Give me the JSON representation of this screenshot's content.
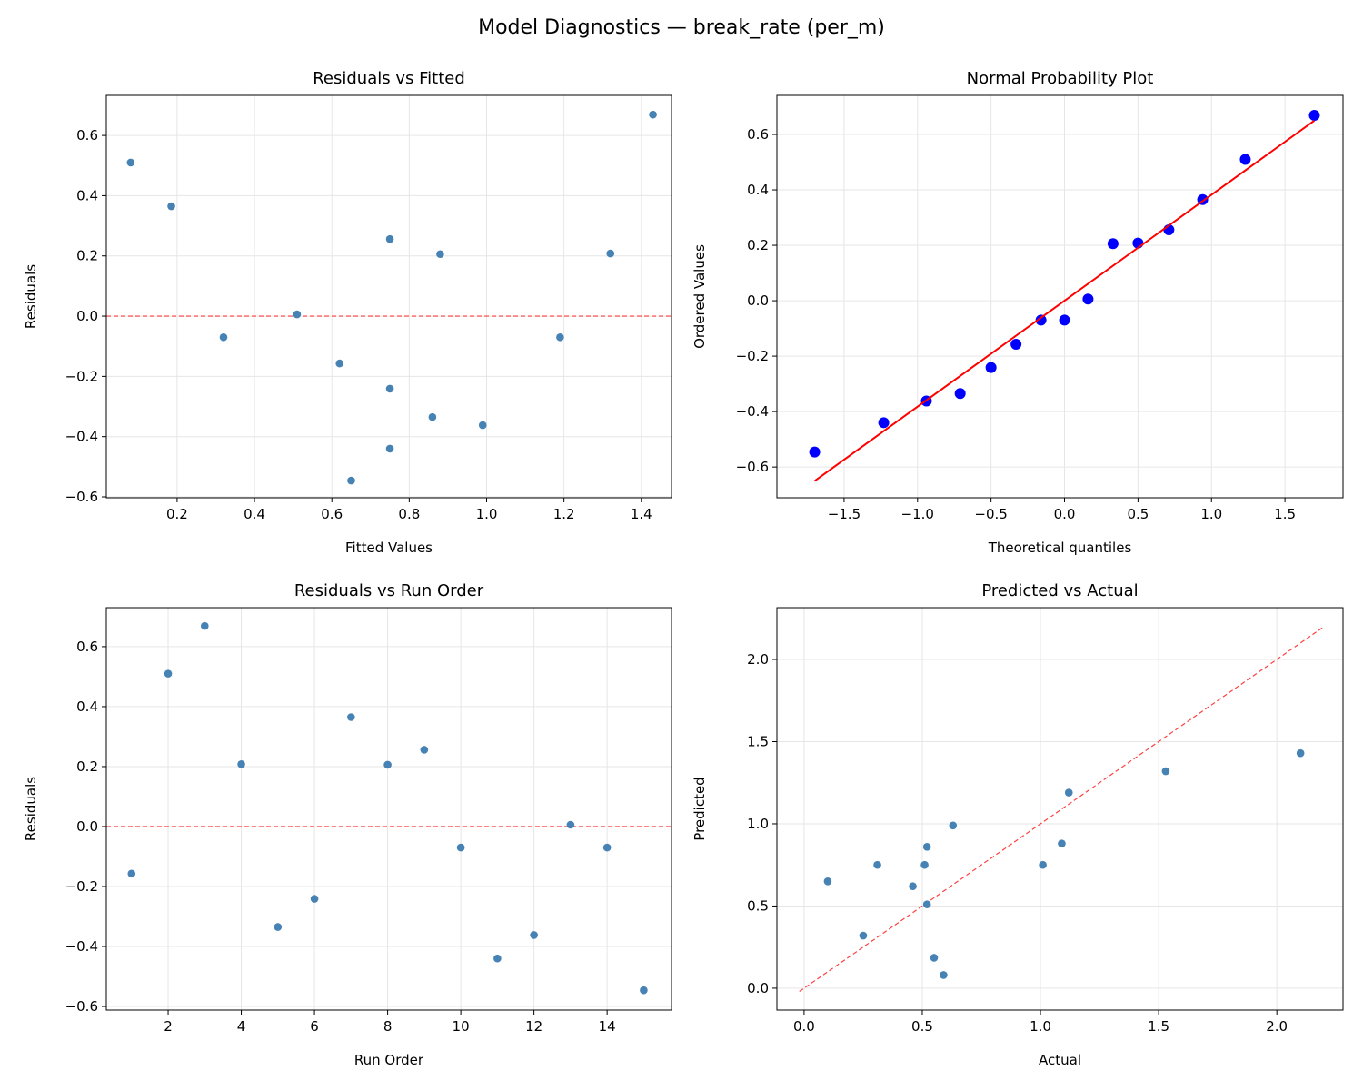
{
  "figure": {
    "title": "Model Diagnostics — break_rate (per_m)"
  },
  "colors": {
    "points": "#4682b4",
    "qq_points": "#0000ff",
    "qq_line": "#ff0000",
    "ref_line": "#ff0000",
    "grid": "#e6e6e6"
  },
  "chart_data": [
    {
      "type": "scatter",
      "title": "Residuals vs Fitted",
      "xlabel": "Fitted Values",
      "ylabel": "Residuals",
      "xlim": [
        0.017,
        1.478
      ],
      "ylim": [
        -0.603,
        0.733
      ],
      "xticks": [
        0.2,
        0.4,
        0.6,
        0.8,
        1.0,
        1.2,
        1.4
      ],
      "xtick_labels": [
        "0.2",
        "0.4",
        "0.6",
        "0.8",
        "1.0",
        "1.2",
        "1.4"
      ],
      "yticks": [
        -0.6,
        -0.4,
        -0.2,
        0.0,
        0.2,
        0.4,
        0.6
      ],
      "ytick_labels": [
        "−0.6",
        "−0.4",
        "−0.2",
        "0.0",
        "0.2",
        "0.4",
        "0.6"
      ],
      "grid": true,
      "x": [
        0.62,
        0.08,
        1.43,
        1.32,
        0.86,
        0.75,
        0.185,
        0.88,
        0.75,
        1.19,
        0.75,
        0.99,
        0.51,
        0.32,
        0.65
      ],
      "y": [
        -0.157,
        0.51,
        0.669,
        0.208,
        -0.335,
        -0.241,
        0.365,
        0.206,
        0.256,
        -0.07,
        -0.44,
        -0.362,
        0.006,
        -0.07,
        -0.546
      ],
      "reference_line": {
        "style": "dashed",
        "y": 0
      }
    },
    {
      "type": "scatter",
      "title": "Normal Probability Plot",
      "xlabel": "Theoretical quantiles",
      "ylabel": "Ordered Values",
      "xlim": [
        -1.957,
        1.895
      ],
      "ylim": [
        -0.711,
        0.741
      ],
      "xticks": [
        -1.5,
        -1.0,
        -0.5,
        0.0,
        0.5,
        1.0,
        1.5
      ],
      "xtick_labels": [
        "−1.5",
        "−1.0",
        "−0.5",
        "0.0",
        "0.5",
        "1.0",
        "1.5"
      ],
      "yticks": [
        -0.6,
        -0.4,
        -0.2,
        0.0,
        0.2,
        0.4,
        0.6
      ],
      "ytick_labels": [
        "−0.6",
        "−0.4",
        "−0.2",
        "0.0",
        "0.2",
        "0.4",
        "0.6"
      ],
      "grid": true,
      "x": [
        -1.7,
        -1.23,
        -0.94,
        -0.71,
        -0.5,
        -0.33,
        -0.16,
        0.0,
        0.16,
        0.33,
        0.5,
        0.71,
        0.94,
        1.23,
        1.7
      ],
      "y": [
        -0.546,
        -0.44,
        -0.362,
        -0.335,
        -0.241,
        -0.157,
        -0.07,
        -0.07,
        0.006,
        0.206,
        0.208,
        0.256,
        0.365,
        0.51,
        0.669
      ],
      "fit_line": {
        "style": "solid",
        "x": [
          -1.7,
          1.7
        ],
        "y": [
          -0.65,
          0.65
        ]
      }
    },
    {
      "type": "scatter",
      "title": "Residuals vs Run Order",
      "xlabel": "Run Order",
      "ylabel": "Residuals",
      "xlim": [
        0.31,
        15.76
      ],
      "ylim": [
        -0.612,
        0.73
      ],
      "xticks": [
        2,
        4,
        6,
        8,
        10,
        12,
        14
      ],
      "xtick_labels": [
        "2",
        "4",
        "6",
        "8",
        "10",
        "12",
        "14"
      ],
      "yticks": [
        -0.6,
        -0.4,
        -0.2,
        0.0,
        0.2,
        0.4,
        0.6
      ],
      "ytick_labels": [
        "−0.6",
        "−0.4",
        "−0.2",
        "0.0",
        "0.2",
        "0.4",
        "0.6"
      ],
      "grid": true,
      "x": [
        1,
        2,
        3,
        4,
        5,
        6,
        7,
        8,
        9,
        10,
        11,
        12,
        13,
        14,
        15
      ],
      "y": [
        -0.157,
        0.51,
        0.669,
        0.208,
        -0.335,
        -0.241,
        0.365,
        0.206,
        0.256,
        -0.07,
        -0.44,
        -0.362,
        0.006,
        -0.07,
        -0.546
      ],
      "reference_line": {
        "style": "dashed",
        "y": 0
      }
    },
    {
      "type": "scatter",
      "title": "Predicted vs Actual",
      "xlabel": "Actual",
      "ylabel": "Predicted",
      "xlim": [
        -0.115,
        2.28
      ],
      "ylim": [
        -0.133,
        2.315
      ],
      "xticks": [
        0.0,
        0.5,
        1.0,
        1.5,
        2.0
      ],
      "xtick_labels": [
        "0.0",
        "0.5",
        "1.0",
        "1.5",
        "2.0"
      ],
      "yticks": [
        0.0,
        0.5,
        1.0,
        1.5,
        2.0
      ],
      "ytick_labels": [
        "0.0",
        "0.5",
        "1.0",
        "1.5",
        "2.0"
      ],
      "grid": true,
      "x": [
        0.46,
        0.59,
        2.1,
        1.53,
        0.52,
        0.51,
        0.55,
        1.09,
        1.01,
        1.12,
        0.31,
        0.63,
        0.52,
        0.25,
        0.1
      ],
      "y": [
        0.62,
        0.08,
        1.43,
        1.32,
        0.86,
        0.75,
        0.185,
        0.88,
        0.75,
        1.19,
        0.75,
        0.99,
        0.51,
        0.32,
        0.65
      ],
      "identity_line": {
        "style": "dashed",
        "x": [
          -0.02,
          2.2
        ],
        "y": [
          -0.02,
          2.2
        ]
      }
    }
  ]
}
